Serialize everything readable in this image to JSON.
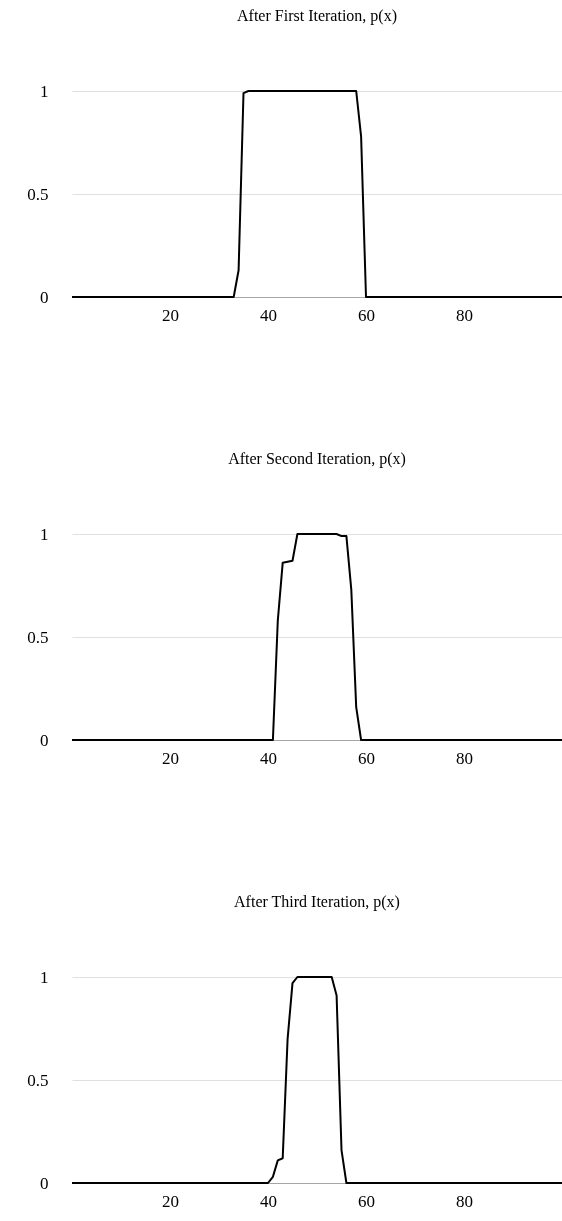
{
  "chart_data": [
    {
      "type": "line",
      "title": "After First Iteration, p(x)",
      "x": [
        0,
        33,
        34,
        35,
        36,
        58,
        59,
        60,
        100
      ],
      "values": [
        0,
        0,
        0.13,
        0.99,
        1,
        1,
        0.78,
        0,
        0
      ],
      "color": "#000000",
      "xlim": [
        0,
        100
      ],
      "xticks": [
        20,
        40,
        60,
        80
      ],
      "ylim": [
        0,
        1
      ],
      "yticks": [
        0,
        0.5,
        1
      ],
      "grid": "y"
    },
    {
      "type": "line",
      "title": "After Second Iteration, p(x)",
      "x": [
        0,
        41,
        42,
        43,
        45,
        46,
        54,
        55,
        56,
        57,
        58,
        59,
        100
      ],
      "values": [
        0,
        0,
        0.58,
        0.86,
        0.87,
        1,
        1,
        0.99,
        0.99,
        0.73,
        0.16,
        0,
        0
      ],
      "color": "#000000",
      "xlim": [
        0,
        100
      ],
      "xticks": [
        20,
        40,
        60,
        80
      ],
      "ylim": [
        0,
        1
      ],
      "yticks": [
        0,
        0.5,
        1
      ],
      "grid": "y"
    },
    {
      "type": "line",
      "title": "After Third Iteration, p(x)",
      "x": [
        0,
        40,
        41,
        42,
        43,
        44,
        45,
        46,
        53,
        54,
        55,
        56,
        100
      ],
      "values": [
        0,
        0,
        0.03,
        0.11,
        0.12,
        0.7,
        0.97,
        1,
        1,
        0.91,
        0.16,
        0,
        0
      ],
      "color": "#000000",
      "xlim": [
        0,
        100
      ],
      "xticks": [
        20,
        40,
        60,
        80
      ],
      "ylim": [
        0,
        1
      ],
      "yticks": [
        0,
        0.5,
        1
      ],
      "grid": "y"
    }
  ]
}
